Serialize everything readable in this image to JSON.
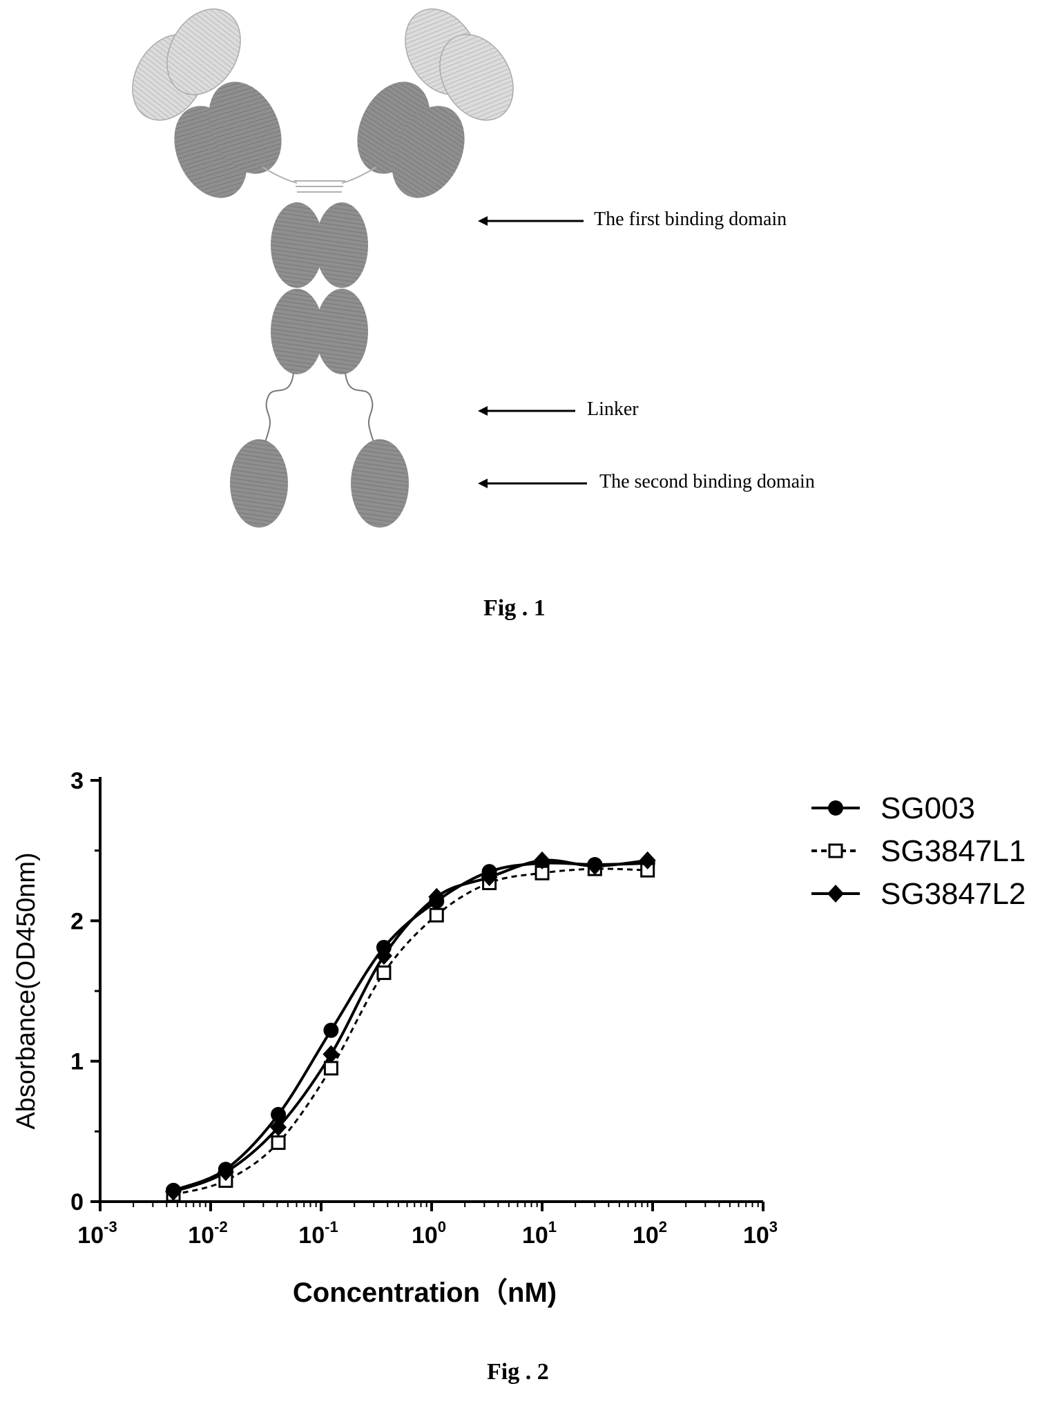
{
  "fig1": {
    "caption": "Fig . 1",
    "labels": {
      "first_binding_domain": "The first binding domain",
      "linker": "Linker",
      "second_binding_domain": "The second binding domain"
    },
    "colors": {
      "heavy_domain": "#8a8a8a",
      "light_domain": "#d2d2d2",
      "linker": "#777777"
    }
  },
  "fig2": {
    "caption": "Fig . 2"
  },
  "chart_data": {
    "type": "line",
    "xscale": "log",
    "xlabel": "Concentration（nM)",
    "ylabel": "Absorbance(OD450nm)",
    "xlim": [
      0.001,
      1000
    ],
    "ylim": [
      0,
      3
    ],
    "x_tick_exponents": [
      "-3",
      "-2",
      "-1",
      "0",
      "1",
      "2",
      "3"
    ],
    "y_ticks": [
      "0",
      "1",
      "2",
      "3"
    ],
    "x": [
      0.0046,
      0.0137,
      0.041,
      0.123,
      0.37,
      1.11,
      3.33,
      10,
      30,
      90
    ],
    "series": [
      {
        "name": "SG003",
        "marker": "filled-circle",
        "line": "solid",
        "values": [
          0.08,
          0.23,
          0.62,
          1.22,
          1.81,
          2.14,
          2.35,
          2.41,
          2.4,
          2.41
        ]
      },
      {
        "name": "SG3847L1",
        "marker": "open-square",
        "line": "dashed",
        "values": [
          0.05,
          0.15,
          0.42,
          0.95,
          1.63,
          2.04,
          2.27,
          2.34,
          2.37,
          2.36
        ]
      },
      {
        "name": "SG3847L2",
        "marker": "filled-diamond",
        "line": "solid",
        "values": [
          0.07,
          0.21,
          0.53,
          1.05,
          1.75,
          2.17,
          2.31,
          2.43,
          2.39,
          2.43
        ]
      }
    ],
    "legend_position": "right",
    "grid": false
  }
}
